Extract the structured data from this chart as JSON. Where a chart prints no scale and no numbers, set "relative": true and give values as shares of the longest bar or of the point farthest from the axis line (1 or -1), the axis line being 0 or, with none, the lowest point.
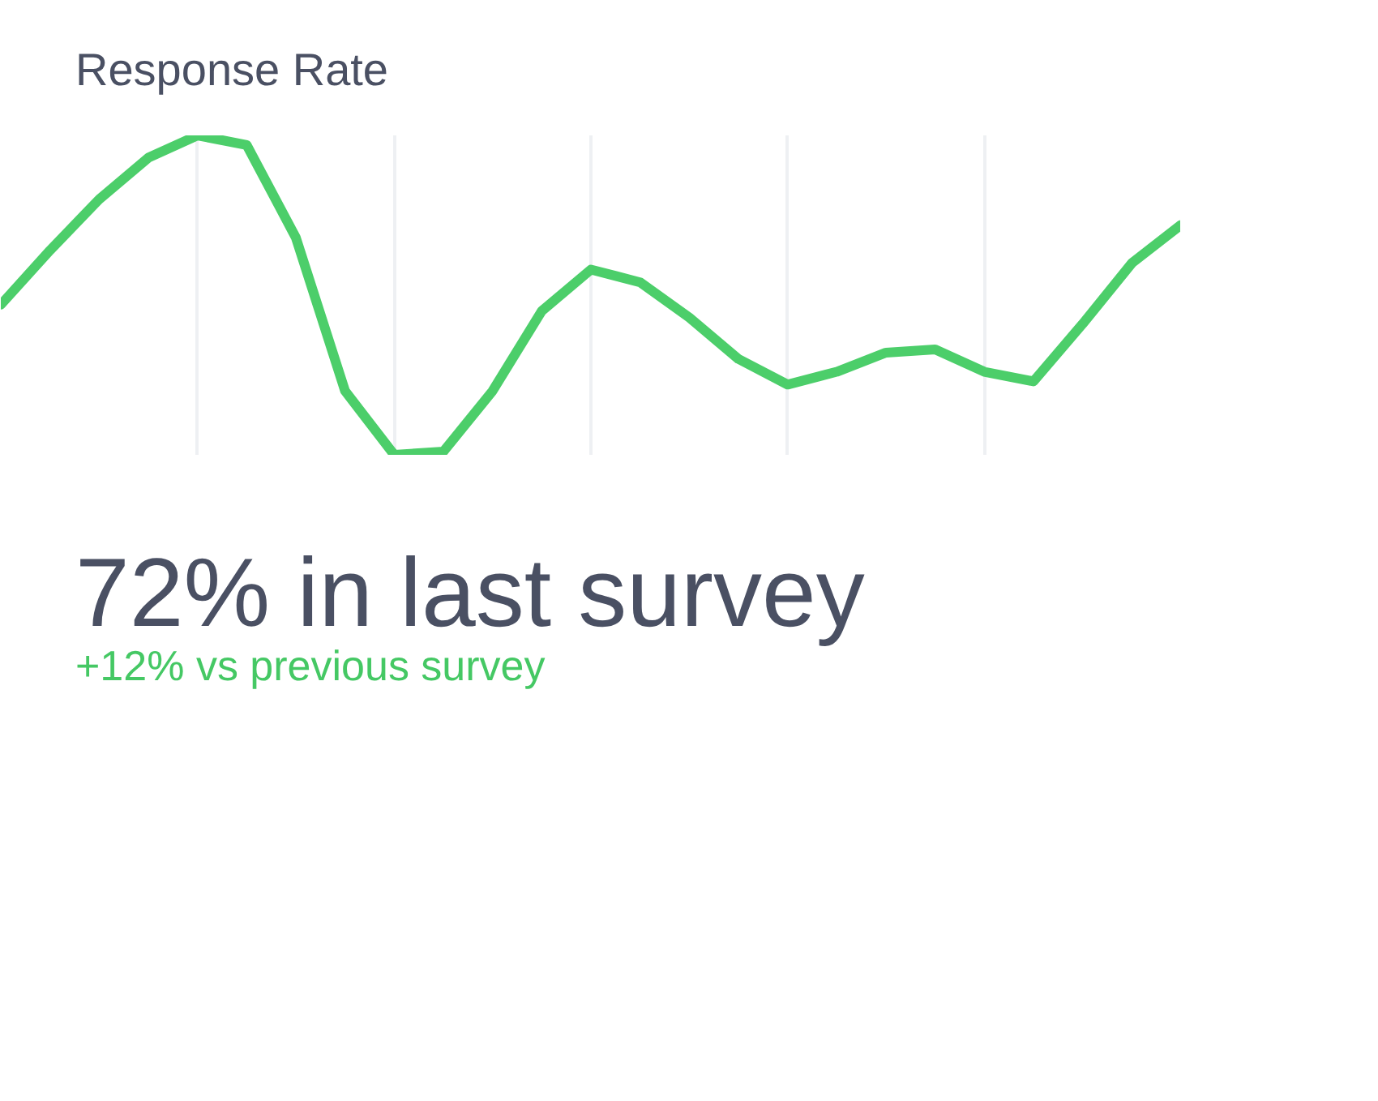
{
  "chart_data": {
    "type": "line",
    "title": "Response Rate",
    "relative": true,
    "grid": "x",
    "categories": [
      null,
      null,
      null,
      null,
      null,
      null,
      null,
      null,
      null,
      null,
      null,
      null,
      null,
      null,
      null,
      null,
      null,
      null,
      null,
      null,
      null,
      null,
      null,
      null,
      null
    ],
    "series": [
      {
        "color": "#4cce6a",
        "values": [
          0.47,
          0.64,
          0.8,
          0.93,
          1,
          0.97,
          0.68,
          0.2,
          0,
          0.01,
          0.2,
          0.45,
          0.58,
          0.54,
          0.43,
          0.3,
          0.22,
          0.26,
          0.32,
          0.33,
          0.26,
          0.23,
          0.41,
          0.6,
          0.72
        ]
      }
    ],
    "annotations": [
      "72% in last survey",
      "+12% vs previous survey"
    ]
  }
}
